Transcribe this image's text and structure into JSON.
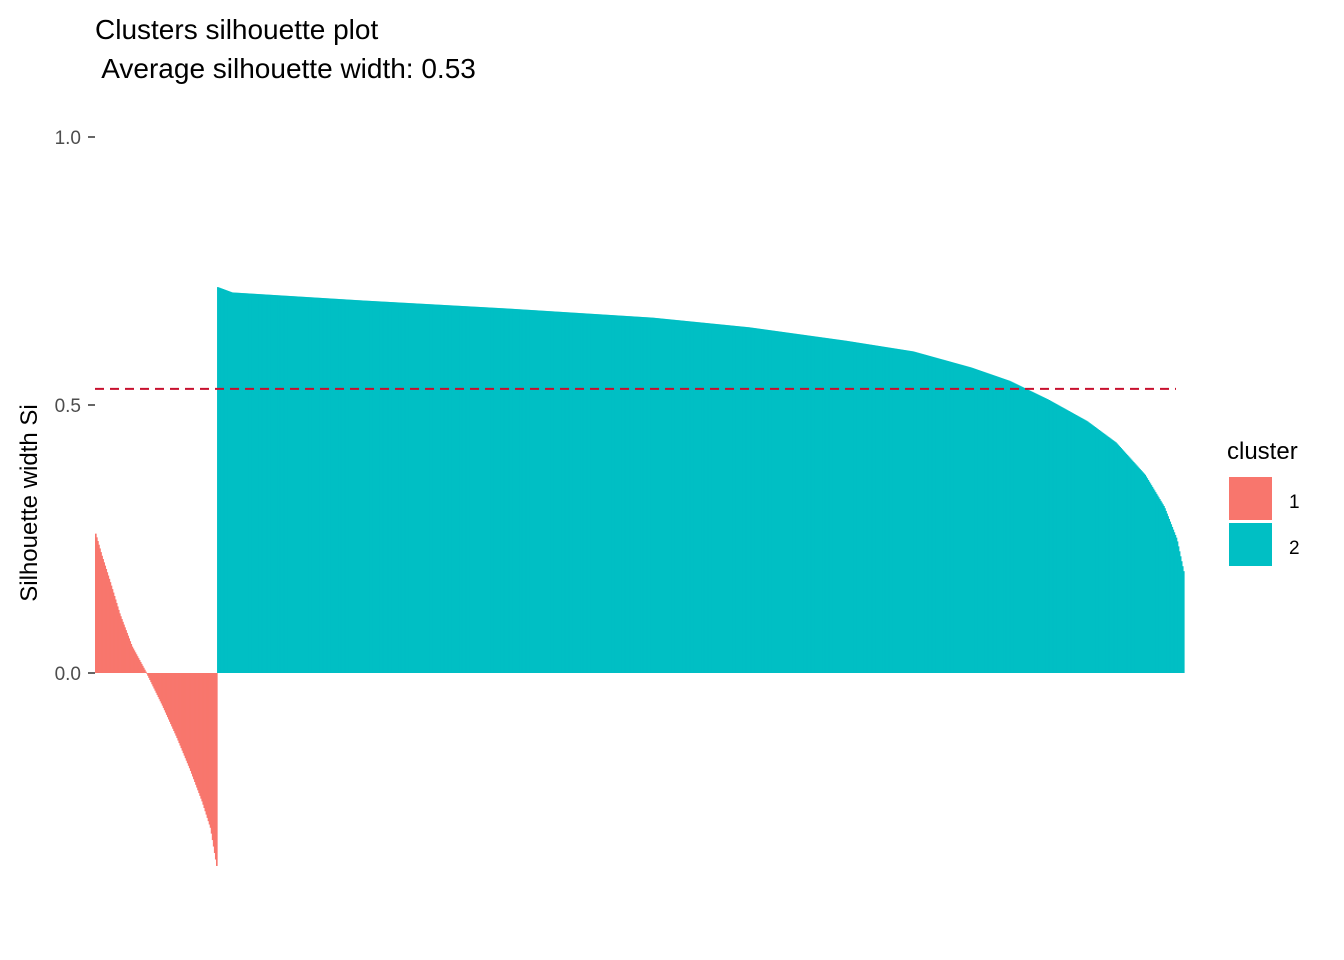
{
  "chart_data": {
    "type": "bar",
    "title": "Clusters silhouette plot",
    "subtitle": " Average silhouette width: 0.53",
    "xlabel": "",
    "ylabel": "Silhouette width Si",
    "ylim": [
      -0.36,
      1.0
    ],
    "y_ticks": [
      {
        "value": 0.0,
        "label": "0.0"
      },
      {
        "value": 0.5,
        "label": "0.5"
      },
      {
        "value": 1.0,
        "label": "1.0"
      }
    ],
    "grid": false,
    "average_silhouette_width": 0.53,
    "reference_line": {
      "value": 0.53,
      "style": "dashed",
      "color": "#C8102E"
    },
    "legend": {
      "title": "cluster",
      "position": "right",
      "entries": [
        {
          "label": "1",
          "color": "#F8766D"
        },
        {
          "label": "2",
          "color": "#00BFC4"
        }
      ]
    },
    "series": [
      {
        "cluster": "1",
        "color": "#F8766D",
        "n": 117,
        "profile": [
          [
            0.0,
            0.26
          ],
          [
            0.05,
            0.22
          ],
          [
            0.12,
            0.17
          ],
          [
            0.2,
            0.11
          ],
          [
            0.3,
            0.05
          ],
          [
            0.42,
            0.0
          ],
          [
            0.55,
            -0.06
          ],
          [
            0.67,
            -0.12
          ],
          [
            0.78,
            -0.18
          ],
          [
            0.88,
            -0.24
          ],
          [
            0.95,
            -0.29
          ],
          [
            1.0,
            -0.36
          ]
        ]
      },
      {
        "cluster": "2",
        "color": "#00BFC4",
        "n": 927,
        "profile": [
          [
            0.0,
            0.72
          ],
          [
            0.015,
            0.71
          ],
          [
            0.15,
            0.695
          ],
          [
            0.3,
            0.68
          ],
          [
            0.45,
            0.663
          ],
          [
            0.55,
            0.645
          ],
          [
            0.65,
            0.62
          ],
          [
            0.72,
            0.6
          ],
          [
            0.78,
            0.57
          ],
          [
            0.82,
            0.545
          ],
          [
            0.86,
            0.51
          ],
          [
            0.9,
            0.47
          ],
          [
            0.93,
            0.43
          ],
          [
            0.96,
            0.37
          ],
          [
            0.98,
            0.31
          ],
          [
            0.993,
            0.25
          ],
          [
            1.0,
            0.19
          ]
        ]
      }
    ]
  }
}
